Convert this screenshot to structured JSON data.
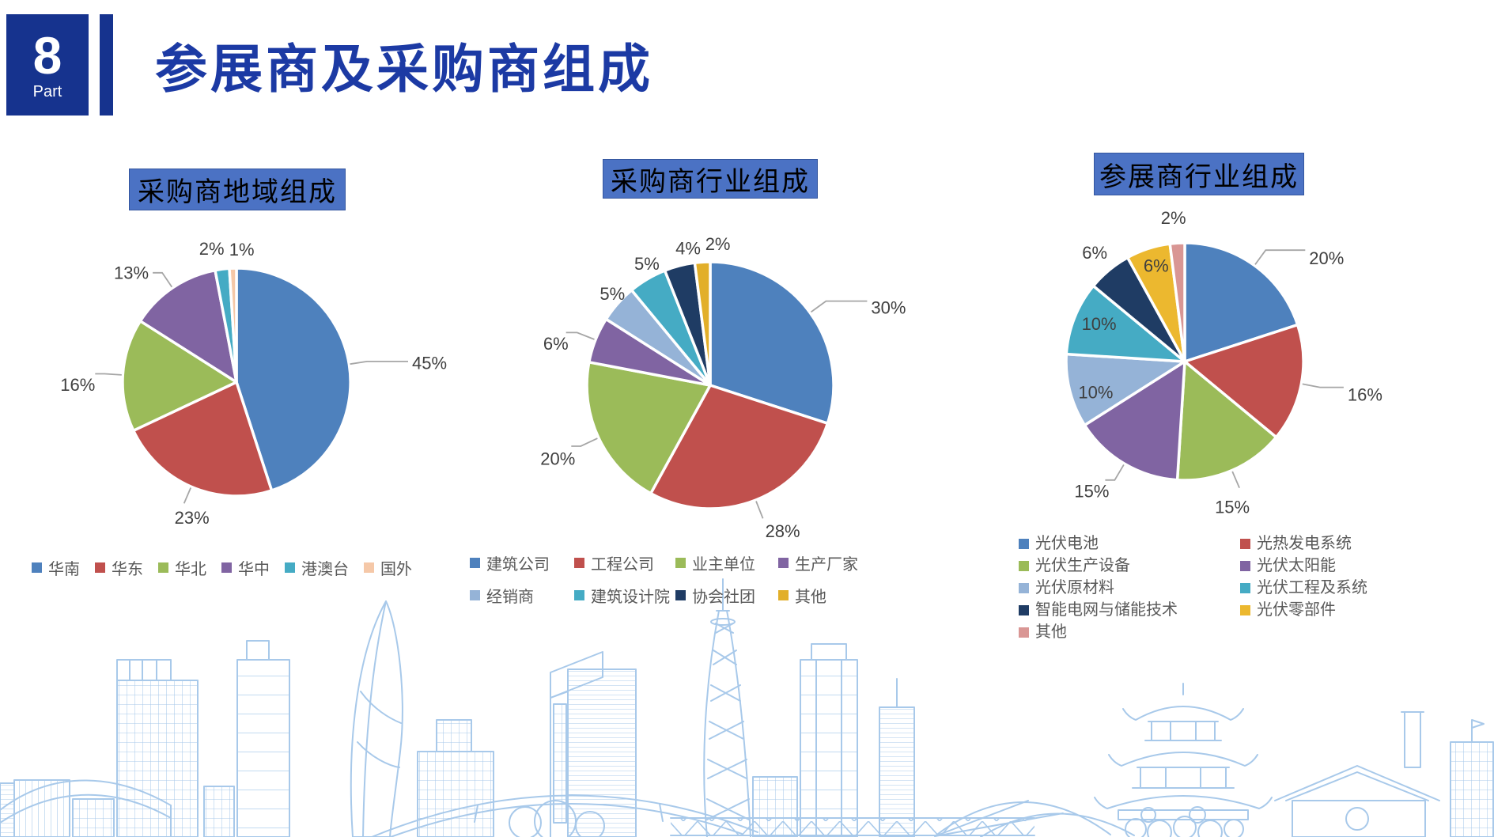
{
  "header": {
    "part_number": "8",
    "part_label": "Part",
    "title": "参展商及采购商组成"
  },
  "chart_data": [
    {
      "type": "pie",
      "title": "采购商地域组成",
      "legend_position": "bottom",
      "slices": [
        {
          "label": "华南",
          "value": 45,
          "color": "#4E81BD",
          "lp": "leader",
          "hlen": 52,
          "anchor": "start",
          "nudge": [
            0,
            2
          ]
        },
        {
          "label": "华东",
          "value": 23,
          "color": "#C0504D",
          "lp": "leader",
          "hlen": 0,
          "anchor": "middle",
          "nudge": [
            10,
            18
          ]
        },
        {
          "label": "华北",
          "value": 16,
          "color": "#9BBB59",
          "lp": "leader",
          "hlen": 12,
          "anchor": "end",
          "nudge": [
            5,
            14
          ]
        },
        {
          "label": "华中",
          "value": 13,
          "color": "#8064A2",
          "lp": "leader",
          "hlen": 12,
          "anchor": "end",
          "nudge": [
            0,
            0
          ]
        },
        {
          "label": "港澳台",
          "value": 2,
          "color": "#45ABC4",
          "lp": "out",
          "rf": 1.18,
          "anchor": "middle",
          "nudge": [
            -10,
            0
          ]
        },
        {
          "label": "国外",
          "value": 1,
          "color": "#F5C8A8",
          "lp": "out",
          "rf": 1.18,
          "anchor": "middle",
          "nudge": [
            12,
            2
          ]
        }
      ]
    },
    {
      "type": "pie",
      "title": "采购商行业组成",
      "legend_position": "bottom",
      "slices": [
        {
          "label": "建筑公司",
          "value": 30,
          "color": "#4E81BD",
          "lp": "leader",
          "hlen": 52,
          "anchor": "start",
          "nudge": [
            0,
            8
          ]
        },
        {
          "label": "工程公司",
          "value": 28,
          "color": "#C0504D",
          "lp": "leader",
          "hlen": 0,
          "anchor": "middle",
          "nudge": [
            25,
            16
          ]
        },
        {
          "label": "业主单位",
          "value": 20,
          "color": "#9BBB59",
          "lp": "leader",
          "hlen": 12,
          "anchor": "end",
          "nudge": [
            10,
            16
          ]
        },
        {
          "label": "生产厂家",
          "value": 6,
          "color": "#8064A2",
          "lp": "leader",
          "hlen": 14,
          "anchor": "end",
          "nudge": [
            8,
            14
          ]
        },
        {
          "label": "经销商",
          "value": 5,
          "color": "#95B3D7",
          "lp": "out",
          "rf": 1.16,
          "anchor": "middle",
          "nudge": [
            12,
            4
          ]
        },
        {
          "label": "建筑设计院",
          "value": 5,
          "color": "#45ABC4",
          "lp": "out",
          "rf": 1.16,
          "anchor": "middle",
          "nudge": [
            12,
            2
          ]
        },
        {
          "label": "协会社团",
          "value": 4,
          "color": "#1F3C64",
          "lp": "out",
          "rf": 1.16,
          "anchor": "middle",
          "nudge": [
            17,
            2
          ]
        },
        {
          "label": "其他",
          "value": 2,
          "color": "#E2AF29",
          "lp": "out",
          "rf": 1.16,
          "anchor": "middle",
          "nudge": [
            21,
            2
          ]
        }
      ]
    },
    {
      "type": "pie",
      "title": "参展商行业组成",
      "legend_position": "bottom",
      "slices": [
        {
          "label": "光伏电池",
          "value": 20,
          "color": "#4E81BD",
          "lp": "leader",
          "hlen": 50,
          "anchor": "start",
          "nudge": [
            0,
            10
          ]
        },
        {
          "label": "光热发电系统",
          "value": 16,
          "color": "#C0504D",
          "lp": "leader",
          "hlen": 30,
          "anchor": "start",
          "nudge": [
            0,
            9
          ]
        },
        {
          "label": "光伏生产设备",
          "value": 15,
          "color": "#9BBB59",
          "lp": "leader",
          "hlen": 0,
          "anchor": "middle",
          "nudge": [
            -9,
            24
          ]
        },
        {
          "label": "光伏太阳能",
          "value": 15,
          "color": "#8064A2",
          "lp": "leader",
          "hlen": 12,
          "anchor": "end",
          "nudge": [
            10,
            14
          ]
        },
        {
          "label": "光伏原材料",
          "value": 10,
          "color": "#95B3D7",
          "lp": "in",
          "rf": 0.72,
          "anchor": "middle",
          "nudge": [
            -8,
            12
          ]
        },
        {
          "label": "光伏工程及系统",
          "value": 10,
          "color": "#45ABC4",
          "lp": "in",
          "rf": 0.72,
          "anchor": "middle",
          "nudge": [
            -8,
            -8
          ]
        },
        {
          "label": "智能电网与储能技术",
          "value": 6,
          "color": "#1F3C64",
          "lp": "out",
          "rf": 1.19,
          "anchor": "middle",
          "nudge": [
            0,
            0
          ]
        },
        {
          "label": "光伏零部件",
          "value": 6,
          "color": "#ECB82F",
          "lp": "in",
          "rf": 0.78,
          "anchor": "middle",
          "nudge": [
            0,
            -10
          ]
        },
        {
          "label": "其他",
          "value": 2,
          "color": "#D99694",
          "lp": "out",
          "rf": 1.2,
          "anchor": "middle",
          "nudge": [
            -3,
            -2
          ]
        }
      ]
    }
  ],
  "watermark": {
    "description": "city skyline line art",
    "color": "#A8C9EA"
  },
  "style": {
    "label_color": "#3F3F3F",
    "leader_color": "#A6A6A6",
    "legend_text_color": "#595959"
  }
}
